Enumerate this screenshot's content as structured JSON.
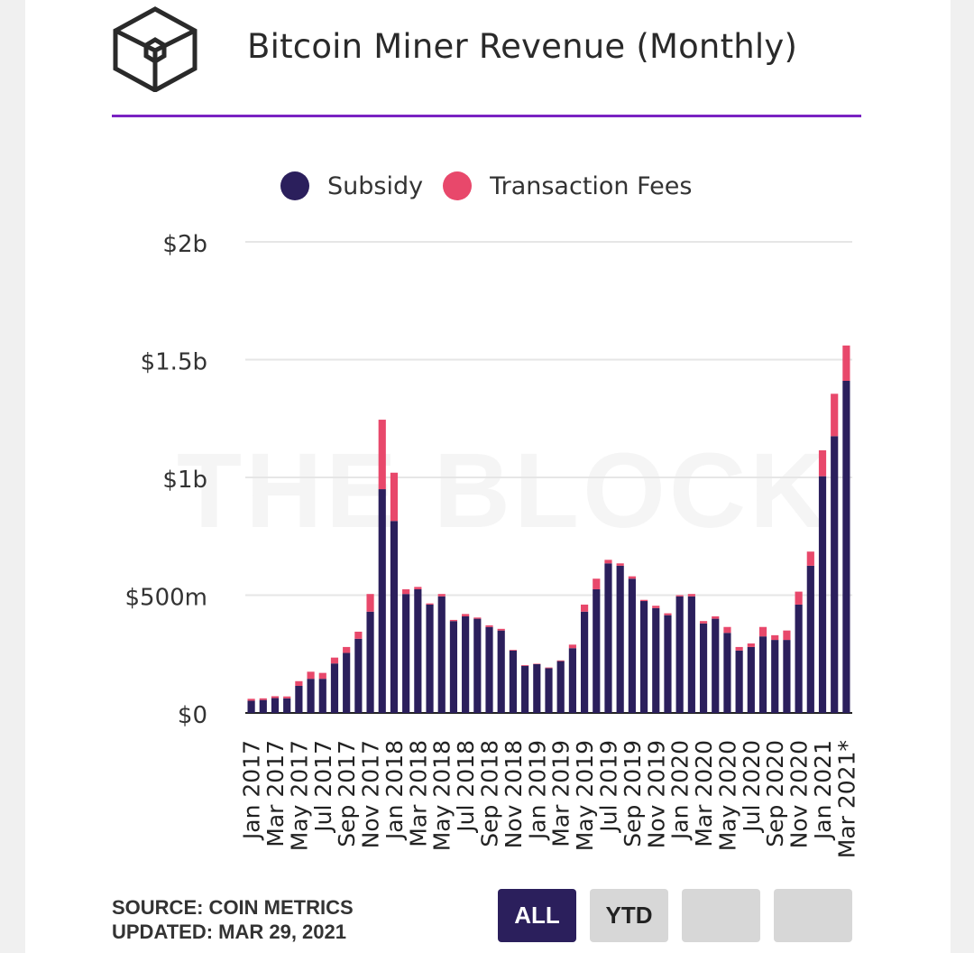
{
  "header": {
    "title": "Bitcoin Miner Revenue (Monthly)",
    "logo": "the-block-cube-logo"
  },
  "watermark": "THE BLOCK",
  "legend": [
    {
      "label": "Subsidy",
      "color": "#2b1f5c"
    },
    {
      "label": "Transaction Fees",
      "color": "#e8486b"
    }
  ],
  "chart_data": {
    "type": "bar",
    "stacked": true,
    "title": "Bitcoin Miner Revenue (Monthly)",
    "xlabel": "",
    "ylabel": "",
    "ylim": [
      0,
      2000000000
    ],
    "yticks": [
      {
        "value": 0,
        "label": "$0"
      },
      {
        "value": 500000000,
        "label": "$500m"
      },
      {
        "value": 1000000000,
        "label": "$1b"
      },
      {
        "value": 1500000000,
        "label": "$1.5b"
      },
      {
        "value": 2000000000,
        "label": "$2b"
      }
    ],
    "grid": true,
    "legend_position": "top",
    "categories": [
      "Jan 2017",
      "Feb 2017",
      "Mar 2017",
      "Apr 2017",
      "May 2017",
      "Jun 2017",
      "Jul 2017",
      "Aug 2017",
      "Sep 2017",
      "Oct 2017",
      "Nov 2017",
      "Dec 2017",
      "Jan 2018",
      "Feb 2018",
      "Mar 2018",
      "Apr 2018",
      "May 2018",
      "Jun 2018",
      "Jul 2018",
      "Aug 2018",
      "Sep 2018",
      "Oct 2018",
      "Nov 2018",
      "Dec 2018",
      "Jan 2019",
      "Feb 2019",
      "Mar 2019",
      "Apr 2019",
      "May 2019",
      "Jun 2019",
      "Jul 2019",
      "Aug 2019",
      "Sep 2019",
      "Oct 2019",
      "Nov 2019",
      "Dec 2019",
      "Jan 2020",
      "Feb 2020",
      "Mar 2020",
      "Apr 2020",
      "May 2020",
      "Jun 2020",
      "Jul 2020",
      "Aug 2020",
      "Sep 2020",
      "Oct 2020",
      "Nov 2020",
      "Dec 2020",
      "Jan 2021",
      "Feb 2021",
      "Mar 2021*"
    ],
    "tick_labels": [
      "Jan 2017",
      "Mar 2017",
      "May 2017",
      "Jul 2017",
      "Sep 2017",
      "Nov 2017",
      "Jan 2018",
      "Mar 2018",
      "May 2018",
      "Jul 2018",
      "Sep 2018",
      "Nov 2018",
      "Jan 2019",
      "Mar 2019",
      "May 2019",
      "Jul 2019",
      "Sep 2019",
      "Nov 2019",
      "Jan 2020",
      "Mar 2020",
      "May 2020",
      "Jul 2020",
      "Sep 2020",
      "Nov 2020",
      "Jan 2021",
      "Mar 2021*"
    ],
    "series": [
      {
        "name": "Subsidy",
        "color": "#2b1f5c",
        "values": [
          52000000,
          55000000,
          63000000,
          62000000,
          115000000,
          145000000,
          145000000,
          210000000,
          255000000,
          315000000,
          430000000,
          950000000,
          815000000,
          505000000,
          525000000,
          460000000,
          495000000,
          390000000,
          410000000,
          400000000,
          365000000,
          350000000,
          265000000,
          200000000,
          207000000,
          190000000,
          220000000,
          275000000,
          430000000,
          525000000,
          635000000,
          625000000,
          570000000,
          475000000,
          445000000,
          415000000,
          495000000,
          495000000,
          380000000,
          400000000,
          340000000,
          265000000,
          280000000,
          325000000,
          310000000,
          310000000,
          460000000,
          625000000,
          1005000000,
          1175000000,
          1410000000
        ]
      },
      {
        "name": "Transaction Fees",
        "color": "#e8486b",
        "values": [
          8000000,
          7000000,
          8000000,
          8000000,
          20000000,
          30000000,
          25000000,
          25000000,
          25000000,
          30000000,
          75000000,
          295000000,
          205000000,
          20000000,
          10000000,
          5000000,
          10000000,
          5000000,
          10000000,
          5000000,
          7000000,
          7000000,
          3000000,
          3000000,
          2000000,
          3000000,
          3000000,
          15000000,
          30000000,
          45000000,
          15000000,
          10000000,
          10000000,
          5000000,
          10000000,
          8000000,
          5000000,
          10000000,
          10000000,
          10000000,
          25000000,
          15000000,
          15000000,
          40000000,
          20000000,
          40000000,
          55000000,
          60000000,
          110000000,
          180000000,
          150000000
        ]
      }
    ]
  },
  "footer": {
    "source": "SOURCE: COIN METRICS",
    "updated": "UPDATED: MAR 29, 2021",
    "buttons": [
      "ALL",
      "YTD",
      "",
      ""
    ]
  }
}
